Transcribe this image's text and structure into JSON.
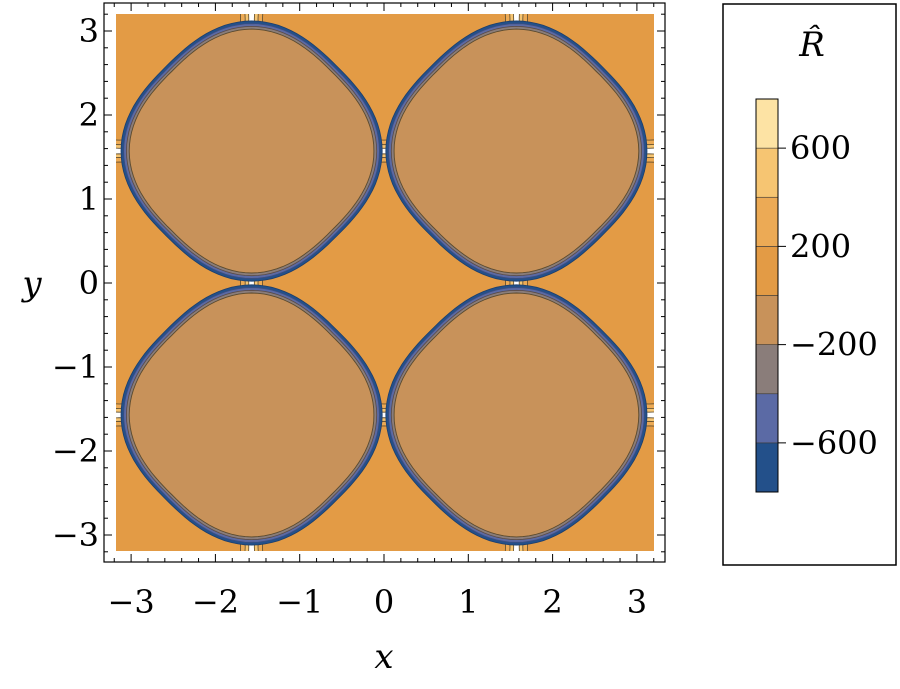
{
  "chart_data": {
    "type": "contour",
    "function": "R(x,y) = -800*sin(x)*sin(y) + 800*cos(2x)*cos(2y) level structure with blow-up on the lines |x|+|y| = pi/2 mod pi (white = outside plotted range)",
    "xlabel": "x",
    "ylabel": "y",
    "xlim": [
      -3.2,
      3.2
    ],
    "ylim": [
      -3.2,
      3.2
    ],
    "x_ticks": [
      "−3",
      "−2",
      "−1",
      "0",
      "1",
      "2",
      "3"
    ],
    "x_tick_values": [
      -3,
      -2,
      -1,
      0,
      1,
      2,
      3
    ],
    "y_ticks": [
      "3",
      "2",
      "1",
      "0",
      "−1",
      "−2",
      "−3"
    ],
    "y_tick_values": [
      3,
      2,
      1,
      0,
      -1,
      -2,
      -3
    ],
    "levels": [
      -800,
      -600,
      -400,
      -200,
      0,
      200,
      400,
      600,
      800
    ],
    "level_colors": [
      "#23508a",
      "#5b6aa5",
      "#8a7d7a",
      "#c8925a",
      "#e39b45",
      "#ecaa55",
      "#f6c572",
      "#fde3a4"
    ],
    "regions": [
      {
        "kind": "negative",
        "center": [
          -1.5708,
          1.5708
        ],
        "value": -150
      },
      {
        "kind": "negative",
        "center": [
          1.5708,
          1.5708
        ],
        "value": -150
      },
      {
        "kind": "negative",
        "center": [
          -1.5708,
          -1.5708
        ],
        "value": -150
      },
      {
        "kind": "negative",
        "center": [
          1.5708,
          -1.5708
        ],
        "value": -150
      },
      {
        "kind": "positive",
        "center": [
          0,
          0
        ],
        "value": 150
      }
    ]
  },
  "colorbar": {
    "title": "R̂",
    "labels": [
      "600",
      "200",
      "−200",
      "−600"
    ],
    "label_values": [
      600,
      200,
      -200,
      -600
    ],
    "range": [
      -800,
      800
    ]
  }
}
